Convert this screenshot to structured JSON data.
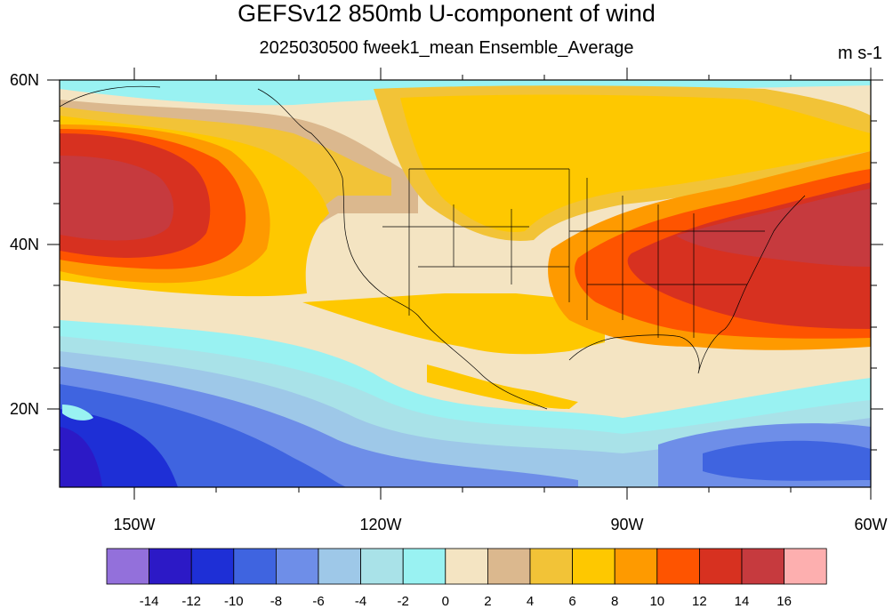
{
  "title": "GEFSv12 850mb U-component of wind",
  "subtitle": "2025030500 fweek1_mean Ensemble_Average",
  "units": "m s-1",
  "lat_labels": [
    "60N",
    "40N",
    "20N"
  ],
  "lon_labels": [
    "150W",
    "120W",
    "90W",
    "60W"
  ],
  "colorbar": {
    "colors": [
      "#9370db",
      "#2c19c6",
      "#1e2fd6",
      "#3f64e0",
      "#6e8ee8",
      "#9ec8e8",
      "#a9e2e8",
      "#99f2f2",
      "#f4e4c2",
      "#dbb88e",
      "#f2c337",
      "#fec800",
      "#fe9a00",
      "#fe5400",
      "#d73120",
      "#c63a3e",
      "#fdafaf"
    ],
    "labels": [
      "-14",
      "-12",
      "-10",
      "-8",
      "-6",
      "-4",
      "-2",
      "0",
      "2",
      "4",
      "6",
      "8",
      "10",
      "12",
      "14",
      "16"
    ]
  },
  "map_extent": {
    "lon": [
      -160,
      -60
    ],
    "lat": [
      10,
      60
    ]
  }
}
